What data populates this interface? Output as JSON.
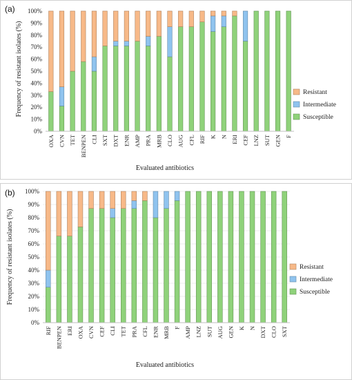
{
  "chart_data": [
    {
      "type": "bar",
      "stacked": true,
      "panel_label": "(a)",
      "xlabel": "Evaluated antibiotics",
      "ylabel": "Frequency of resistant isolates (%)",
      "ylim": [
        0,
        100
      ],
      "yticks": [
        "0%",
        "10%",
        "20%",
        "30%",
        "40%",
        "50%",
        "60%",
        "70%",
        "80%",
        "90%",
        "100%"
      ],
      "grid": false,
      "legend_position": "right",
      "categories": [
        "OXA",
        "CVN",
        "TET",
        "BENPEN",
        "CLI",
        "SXT",
        "DXT",
        "ENR",
        "AMP",
        "PRA",
        "MRB",
        "CLO",
        "AUG",
        "CFL",
        "RIF",
        "K",
        "N",
        "ERI",
        "CEF",
        "LNZ",
        "SUT",
        "GEN",
        "F"
      ],
      "series": [
        {
          "name": "Susceptible",
          "color": "#8fd27a",
          "values": [
            33,
            21,
            50,
            58,
            50,
            71,
            71,
            71,
            75,
            71,
            79,
            62,
            87,
            87,
            91,
            83,
            87,
            96,
            75,
            100,
            100,
            100,
            100
          ]
        },
        {
          "name": "Intermediate",
          "color": "#8fc3ee",
          "values": [
            0,
            16,
            0,
            0,
            12,
            0,
            4,
            4,
            0,
            8,
            0,
            25,
            0,
            0,
            0,
            13,
            9,
            0,
            25,
            0,
            0,
            0,
            0
          ]
        },
        {
          "name": "Resistant",
          "color": "#f7b988",
          "values": [
            67,
            63,
            50,
            42,
            38,
            29,
            25,
            25,
            25,
            21,
            21,
            13,
            13,
            13,
            9,
            4,
            4,
            4,
            0,
            0,
            0,
            0,
            0
          ]
        }
      ]
    },
    {
      "type": "bar",
      "stacked": true,
      "panel_label": "(b)",
      "xlabel": "Evaluated antibiotics",
      "ylabel": "Frequency of resistant isolates (%)",
      "ylim": [
        0,
        100
      ],
      "yticks": [
        "0%",
        "10%",
        "20%",
        "30%",
        "40%",
        "50%",
        "60%",
        "70%",
        "80%",
        "90%",
        "100%"
      ],
      "grid": true,
      "legend_position": "right",
      "categories": [
        "RIF",
        "BENPEN",
        "ERI",
        "OXA",
        "CVN",
        "CEF",
        "CLI",
        "TET",
        "PRA",
        "CFL",
        "ENR",
        "MRB",
        "F",
        "AMP",
        "LNZ",
        "SUT",
        "AUG",
        "GEN",
        "K",
        "N",
        "DXT",
        "CLO",
        "SXT"
      ],
      "series": [
        {
          "name": "Susceptible",
          "color": "#8fd27a",
          "values": [
            27,
            66,
            66,
            73,
            87,
            87,
            80,
            87,
            87,
            93,
            80,
            87,
            93,
            100,
            100,
            100,
            100,
            100,
            100,
            100,
            100,
            100,
            100
          ]
        },
        {
          "name": "Intermediate",
          "color": "#8fc3ee",
          "values": [
            13,
            0,
            0,
            0,
            0,
            0,
            7,
            0,
            6,
            0,
            20,
            13,
            7,
            0,
            0,
            0,
            0,
            0,
            0,
            0,
            0,
            0,
            0
          ]
        },
        {
          "name": "Resistant",
          "color": "#f7b988",
          "values": [
            60,
            34,
            34,
            27,
            13,
            13,
            13,
            13,
            7,
            7,
            0,
            0,
            0,
            0,
            0,
            0,
            0,
            0,
            0,
            0,
            0,
            0,
            0
          ]
        }
      ]
    }
  ]
}
